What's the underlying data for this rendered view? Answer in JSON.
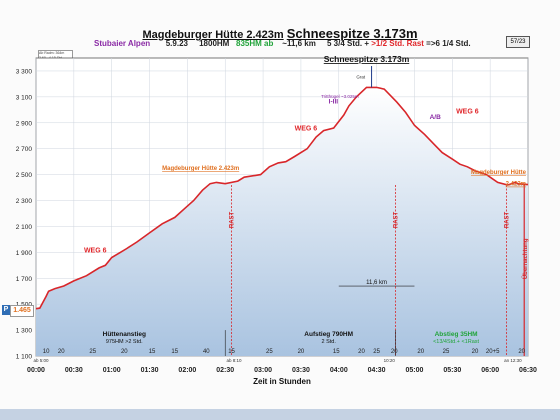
{
  "header": {
    "title_part1": "Magdeburger Hütte 2.423m",
    "title_part2": "Schneespitze 3.173m",
    "region": "Stubaier Alpen",
    "date": "5.9.23",
    "hm_total": "1800HM",
    "hm_ab": "835HM ab",
    "distance": "~11,6 km",
    "time_summary_a": "5 3/4 Std. +",
    "time_summary_b": ">1/2 Std. Rast",
    "time_summary_c": "=>6 1/4 Std.",
    "page": "57/23"
  },
  "notes_box": [
    "Ab Radm: 364m",
    "3,60 - 4 18 Std.",
    "Mittel 2h11..."
  ],
  "start_badge": {
    "letter": "P",
    "value": "1.465"
  },
  "colors": {
    "profile_line": "#d8262a",
    "area_top": "#ffffff",
    "area_bottom": "#a9c3e0",
    "grid": "#cfd6df",
    "peak_line": "#1e3a8a",
    "rast_marker": "#d8262a",
    "ascent_marker": "#1a1a1a",
    "weg_label": "#e0262a",
    "purple": "#8a2aa5",
    "green": "#21a33a",
    "teal": "#1aa39a",
    "orange": "#e07020"
  },
  "chart_data": {
    "type": "area",
    "xlabel": "Zeit in Stunden",
    "ylabel": "",
    "xlim": [
      0,
      390
    ],
    "ylim": [
      1100,
      3400
    ],
    "x_ticks": [
      0,
      30,
      60,
      90,
      120,
      150,
      180,
      210,
      240,
      270,
      300,
      330,
      360,
      390
    ],
    "x_tick_labels": [
      "00:00",
      "00:30",
      "01:00",
      "01:30",
      "02:00",
      "02:30",
      "03:00",
      "03:30",
      "04:00",
      "04:30",
      "05:00",
      "05:30",
      "06:00",
      "06:30"
    ],
    "y_ticks": [
      1100,
      1300,
      1500,
      1700,
      1900,
      2100,
      2300,
      2500,
      2700,
      2900,
      3100,
      3300
    ],
    "y_tick_labels": [
      "1 100",
      "1 300",
      "1 500",
      "1 700",
      "1 900",
      "2 100",
      "2 300",
      "2 500",
      "2 700",
      "2 900",
      "3 100",
      "3 300"
    ],
    "grid": true,
    "series": [
      {
        "x": [
          0,
          3,
          8,
          10,
          15,
          22,
          30,
          40,
          50,
          55,
          60,
          67,
          72,
          80,
          90,
          100,
          110,
          118,
          125,
          132,
          138,
          143,
          150,
          160,
          165,
          178,
          185,
          192,
          198,
          205,
          215,
          222,
          228,
          236,
          244,
          248,
          254,
          262,
          270,
          276,
          286,
          293,
          300,
          308,
          316,
          322,
          330,
          336,
          342,
          348,
          357,
          366,
          374,
          380,
          382,
          390
        ],
        "y": [
          1465,
          1470,
          1560,
          1600,
          1620,
          1640,
          1680,
          1720,
          1780,
          1800,
          1860,
          1900,
          1930,
          1980,
          2050,
          2120,
          2170,
          2240,
          2300,
          2380,
          2430,
          2440,
          2430,
          2450,
          2480,
          2500,
          2560,
          2590,
          2600,
          2640,
          2700,
          2790,
          2840,
          2860,
          2960,
          3030,
          3100,
          3173,
          3173,
          3160,
          3060,
          2980,
          2880,
          2810,
          2730,
          2670,
          2620,
          2580,
          2560,
          2530,
          2500,
          2440,
          2420,
          2440,
          2430,
          2423
        ]
      }
    ],
    "peak_label": "Schneespitze 3.173m",
    "rast_markers": [
      {
        "x": 155,
        "label": "RAST"
      },
      {
        "x": 285,
        "label": "RAST"
      },
      {
        "x": 373,
        "label": "RAST"
      }
    ],
    "end_marker_label": "Übernachtung",
    "weg_labels": [
      {
        "x": 38,
        "y": 1900,
        "text": "WEG 6"
      },
      {
        "x": 205,
        "y": 2840,
        "text": "WEG 6"
      },
      {
        "x": 333,
        "y": 2970,
        "text": "WEG 6"
      }
    ],
    "route_labels": [
      {
        "x": 232,
        "y": 3050,
        "text": "I-III"
      },
      {
        "x": 312,
        "y": 2930,
        "text": "A/B"
      }
    ],
    "location_labels": [
      {
        "x": 100,
        "y": 2535,
        "text": "Magdeburger Hütte 2.423m"
      },
      {
        "x": 390,
        "y": 2505,
        "text": "Magdeburger Hütte"
      },
      {
        "x": 390,
        "y": 2415,
        "text": "2.423m"
      },
      {
        "x": 254,
        "y": 3240,
        "text": "Grat"
      },
      {
        "x": 226,
        "y": 3090,
        "text": "Tritthügel ~3.025m"
      }
    ],
    "distance_label": "11,6 km",
    "segment_labels": [
      {
        "x": 70,
        "text1": "Hüttenanstieg",
        "text2": "975HM  >2 Std."
      },
      {
        "x": 232,
        "text1": "Aufstieg 790HM",
        "text2": "2 Std."
      },
      {
        "x": 333,
        "text1": "Abstieg 35HM",
        "text2": "<13/4Std.+ <1Rast"
      }
    ],
    "bottom_numbers": [
      {
        "x": 8,
        "text": "10"
      },
      {
        "x": 20,
        "text": "20"
      },
      {
        "x": 45,
        "text": "25"
      },
      {
        "x": 70,
        "text": "20"
      },
      {
        "x": 92,
        "text": "15"
      },
      {
        "x": 110,
        "text": "15"
      },
      {
        "x": 135,
        "text": "40"
      },
      {
        "x": 155,
        "text": "15"
      },
      {
        "x": 185,
        "text": "25"
      },
      {
        "x": 210,
        "text": "20"
      },
      {
        "x": 238,
        "text": "15"
      },
      {
        "x": 258,
        "text": "20"
      },
      {
        "x": 270,
        "text": "25"
      },
      {
        "x": 284,
        "text": "20"
      },
      {
        "x": 305,
        "text": "20"
      },
      {
        "x": 325,
        "text": "25"
      },
      {
        "x": 348,
        "text": "20"
      },
      {
        "x": 362,
        "text": "20+5"
      },
      {
        "x": 385,
        "text": "20"
      }
    ],
    "bottom_times": [
      {
        "x": 4,
        "text": "ab 5:00"
      },
      {
        "x": 157,
        "text": "ab 8:10"
      },
      {
        "x": 280,
        "text": "10:20"
      },
      {
        "x": 378,
        "text": "an 12:30"
      }
    ]
  }
}
